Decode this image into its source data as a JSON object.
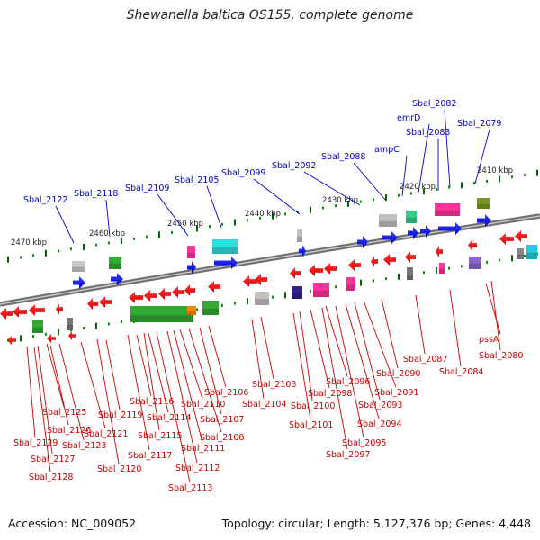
{
  "title": "Shewanella baltica OS155, complete genome",
  "footer": {
    "accession": "Accession: NC_009052",
    "topology": "Topology: circular; Length: 5,127,376 bp; Genes: 4,448"
  },
  "colors": {
    "forward_label": "#0000cc",
    "reverse_label": "#cc0000",
    "backbone": "#808080",
    "tick_minor": "#009900",
    "tick_major": "#006600"
  },
  "scale_ticks": [
    "2410 kbp",
    "2420 kbp",
    "2430 kbp",
    "2440 kbp",
    "2450 kbp",
    "2460 kbp",
    "2470 kbp"
  ],
  "forward_genes": [
    "Sbal_2122",
    "Sbal_2118",
    "Sbal_2109",
    "Sbal_2105",
    "Sbal_2099",
    "Sbal_2092",
    "Sbal_2088",
    "ampC",
    "emrD",
    "Sbal_2083",
    "Sbal_2082",
    "Sbal_2079"
  ],
  "reverse_genes": [
    "Sbal_2129",
    "Sbal_2127",
    "Sbal_2128",
    "Sbal_2125",
    "Sbal_2126",
    "Sbal_2123",
    "Sbal_2121",
    "Sbal_2120",
    "Sbal_2119",
    "Sbal_2117",
    "Sbal_2116",
    "Sbal_2115",
    "Sbal_2114",
    "Sbal_2113",
    "Sbal_2112",
    "Sbal_2111",
    "Sbal_2110",
    "Sbal_2108",
    "Sbal_2107",
    "Sbal_2106",
    "Sbal_2104",
    "Sbal_2103",
    "Sbal_2101",
    "Sbal_2100",
    "Sbal_2098",
    "Sbal_2097",
    "Sbal_2096",
    "Sbal_2095",
    "Sbal_2094",
    "Sbal_2093",
    "Sbal_2091",
    "Sbal_2090",
    "Sbal_2087",
    "Sbal_2084",
    "pssA",
    "Sbal_2080"
  ]
}
